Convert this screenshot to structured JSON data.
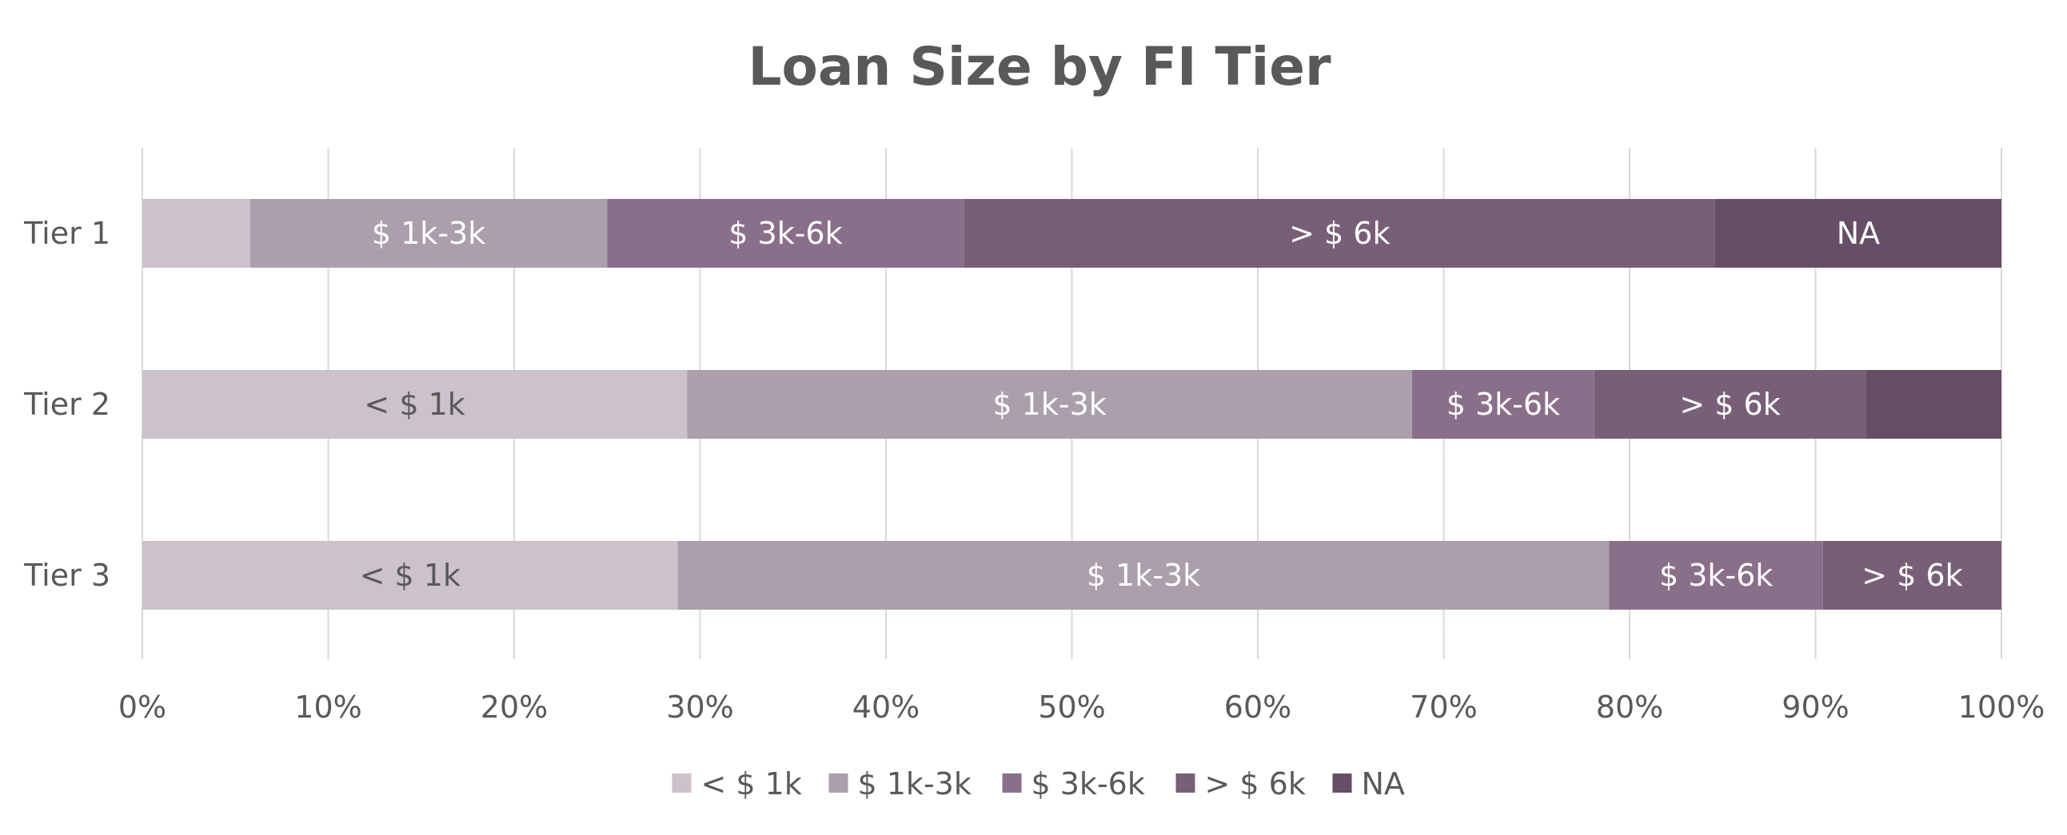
{
  "chart_data": {
    "type": "bar",
    "orientation": "horizontal",
    "stacked": "percent",
    "title": "Loan Size by FI Tier",
    "categories": [
      "Tier 1",
      "Tier 2",
      "Tier 3"
    ],
    "series": [
      {
        "name": "< $ 1k",
        "color": "#cbc2cb",
        "label_color": "#595959",
        "values": [
          5.8,
          29.3,
          28.8
        ]
      },
      {
        "name": "$ 1k-3k",
        "color": "#ab9fab",
        "label_color": "#ffffff",
        "values": [
          19.2,
          39.0,
          50.1
        ]
      },
      {
        "name": "$ 3k-6k",
        "color": "#8a6f8a",
        "label_color": "#ffffff",
        "values": [
          19.2,
          9.8,
          11.5
        ]
      },
      {
        "name": "> $ 6k",
        "color": "#785f78",
        "label_color": "#ffffff",
        "values": [
          40.4,
          14.6,
          9.6
        ]
      },
      {
        "name": "NA",
        "color": "#664f66",
        "label_color": "#ffffff",
        "values": [
          15.4,
          7.3,
          0
        ]
      }
    ],
    "x_ticks": [
      "0%",
      "10%",
      "20%",
      "30%",
      "40%",
      "50%",
      "60%",
      "70%",
      "80%",
      "90%",
      "100%"
    ],
    "xlim": [
      0,
      100
    ],
    "grid": "vertical",
    "legend": "bottom"
  }
}
